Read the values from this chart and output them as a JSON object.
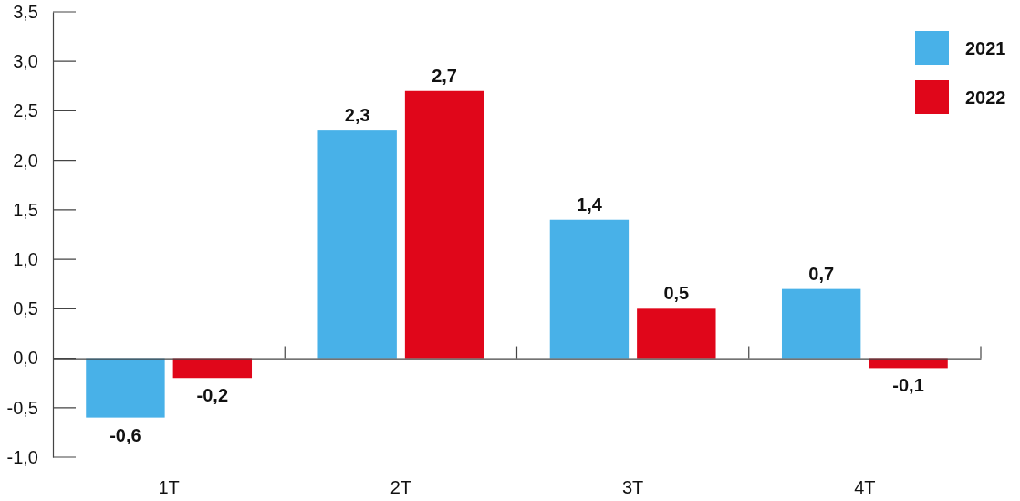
{
  "chart_data": {
    "type": "bar",
    "categories": [
      "1T",
      "2T",
      "3T",
      "4T"
    ],
    "series": [
      {
        "name": "2021",
        "color": "#48b1e8",
        "values": [
          -0.6,
          2.3,
          1.4,
          0.7
        ],
        "value_labels": [
          "-0,6",
          "2,3",
          "1,4",
          "0,7"
        ]
      },
      {
        "name": "2022",
        "color": "#e0061a",
        "values": [
          -0.2,
          2.7,
          0.5,
          -0.1
        ],
        "value_labels": [
          "-0,2",
          "2,7",
          "0,5",
          "-0,1"
        ]
      }
    ],
    "ylim": [
      -1,
      3.5
    ],
    "yticks": [
      {
        "value": -1,
        "label": "-1,0"
      },
      {
        "value": -0.5,
        "label": "-0,5"
      },
      {
        "value": 0,
        "label": "0,0"
      },
      {
        "value": 0.5,
        "label": "0,5"
      },
      {
        "value": 1,
        "label": "1,0"
      },
      {
        "value": 1.5,
        "label": "1,5"
      },
      {
        "value": 2,
        "label": "2,0"
      },
      {
        "value": 2.5,
        "label": "2,5"
      },
      {
        "value": 3,
        "label": "3,0"
      },
      {
        "value": 3.5,
        "label": "3,5"
      }
    ],
    "legend": "top right"
  }
}
